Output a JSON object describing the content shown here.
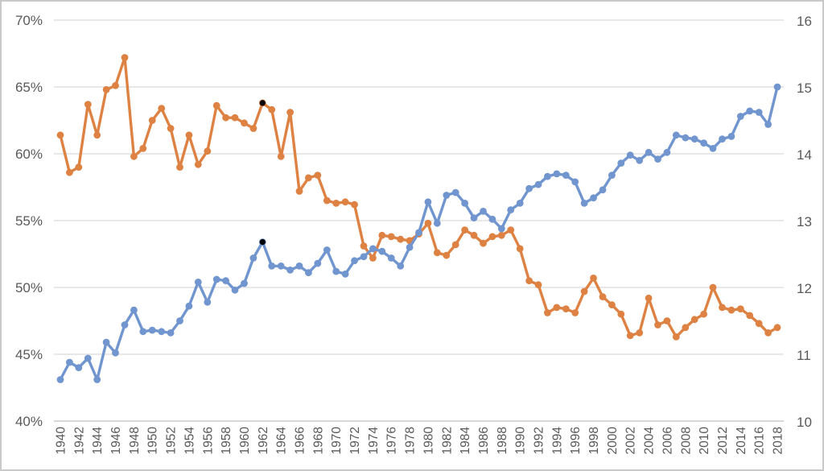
{
  "chart_data": {
    "type": "line",
    "title": "",
    "grid": "horizontal",
    "legend": "none",
    "x_years": [
      1940,
      1941,
      1942,
      1943,
      1944,
      1945,
      1946,
      1947,
      1948,
      1949,
      1950,
      1951,
      1952,
      1953,
      1954,
      1955,
      1956,
      1957,
      1958,
      1959,
      1960,
      1961,
      1962,
      1963,
      1964,
      1965,
      1966,
      1967,
      1968,
      1969,
      1970,
      1971,
      1972,
      1973,
      1974,
      1975,
      1976,
      1977,
      1978,
      1979,
      1980,
      1981,
      1982,
      1983,
      1984,
      1985,
      1986,
      1987,
      1988,
      1989,
      1990,
      1991,
      1992,
      1993,
      1994,
      1995,
      1996,
      1997,
      1998,
      1999,
      2000,
      2001,
      2002,
      2003,
      2004,
      2005,
      2006,
      2007,
      2008,
      2009,
      2010,
      2011,
      2012,
      2013,
      2014,
      2015,
      2016,
      2017,
      2018
    ],
    "x_tick_labels": [
      "1940",
      "1942",
      "1944",
      "1946",
      "1948",
      "1950",
      "1952",
      "1954",
      "1956",
      "1958",
      "1960",
      "1962",
      "1964",
      "1966",
      "1968",
      "1970",
      "1972",
      "1974",
      "1976",
      "1978",
      "1980",
      "1982",
      "1984",
      "1986",
      "1988",
      "1990",
      "1992",
      "1994",
      "1996",
      "1998",
      "2000",
      "2002",
      "2004",
      "2006",
      "2008",
      "2010",
      "2012",
      "2014",
      "2016",
      "2018"
    ],
    "left_axis": {
      "tick_labels": [
        "70%",
        "65%",
        "60%",
        "55%",
        "50%",
        "45%",
        "40%"
      ],
      "min": 40,
      "max": 70,
      "unit": "percent"
    },
    "right_axis": {
      "tick_labels": [
        "16",
        "15",
        "14",
        "13",
        "12",
        "11",
        "10"
      ],
      "min": 10,
      "max": 16
    },
    "axis_alignment_note": "left 40%..70% aligns with right 10..16 (5% per unit)",
    "series": [
      {
        "name": "orange-series",
        "color": "#DE8244",
        "values_percent": [
          61.4,
          58.6,
          59.0,
          63.7,
          61.4,
          64.8,
          65.1,
          67.2,
          59.8,
          60.4,
          62.5,
          63.4,
          61.9,
          59.0,
          61.4,
          59.2,
          60.2,
          63.6,
          62.7,
          62.7,
          62.3,
          61.9,
          63.8,
          63.3,
          59.8,
          63.1,
          57.2,
          58.2,
          58.4,
          56.5,
          56.3,
          56.4,
          56.2,
          53.1,
          52.2,
          53.9,
          53.8,
          53.6,
          53.5,
          54.0,
          54.8,
          52.6,
          52.4,
          53.2,
          54.3,
          53.9,
          53.3,
          53.8,
          53.9,
          54.3,
          52.9,
          50.5,
          50.2,
          48.1,
          48.5,
          48.4,
          48.1,
          49.7,
          50.7,
          49.3,
          48.7,
          48.0,
          46.4,
          46.6,
          49.2,
          47.2,
          47.5,
          46.3,
          47.0,
          47.6,
          48.0,
          50.0,
          48.5,
          48.3,
          48.4,
          47.9,
          47.3,
          46.6,
          47.0
        ]
      },
      {
        "name": "blue-series",
        "color": "#7195CE",
        "values_percent": [
          43.1,
          44.4,
          44.0,
          44.7,
          43.1,
          45.9,
          45.1,
          47.2,
          48.3,
          46.7,
          46.8,
          46.7,
          46.6,
          47.5,
          48.6,
          50.4,
          48.9,
          50.6,
          50.5,
          49.8,
          50.3,
          52.2,
          53.4,
          51.6,
          51.6,
          51.3,
          51.6,
          51.1,
          51.8,
          52.8,
          51.2,
          51.0,
          52.0,
          52.3,
          52.9,
          52.7,
          52.2,
          51.6,
          53.0,
          54.1,
          56.4,
          54.8,
          56.9,
          57.1,
          56.3,
          55.2,
          55.7,
          55.1,
          54.4,
          55.8,
          56.3,
          57.4,
          57.7,
          58.3,
          58.5,
          58.4,
          57.9,
          56.3,
          56.7,
          57.3,
          58.4,
          59.3,
          59.9,
          59.5,
          60.1,
          59.6,
          60.1,
          61.4,
          61.2,
          61.1,
          60.8,
          60.4,
          61.1,
          61.3,
          62.8,
          63.2,
          63.1,
          62.2,
          65.0
        ]
      }
    ],
    "highlighted_points": [
      {
        "series": "orange-series",
        "year": 1962,
        "value_percent": 63.8,
        "marker_color": "#000000"
      },
      {
        "series": "blue-series",
        "year": 1962,
        "value_percent": 53.4,
        "marker_color": "#000000"
      }
    ]
  },
  "colors": {
    "background": "#FFFFFF",
    "gridline": "#D9D9D9",
    "axis_line": "#BFBFBF",
    "axis_text": "#595959",
    "frame_border": "#C9C9C9",
    "highlight_marker": "#000000"
  }
}
